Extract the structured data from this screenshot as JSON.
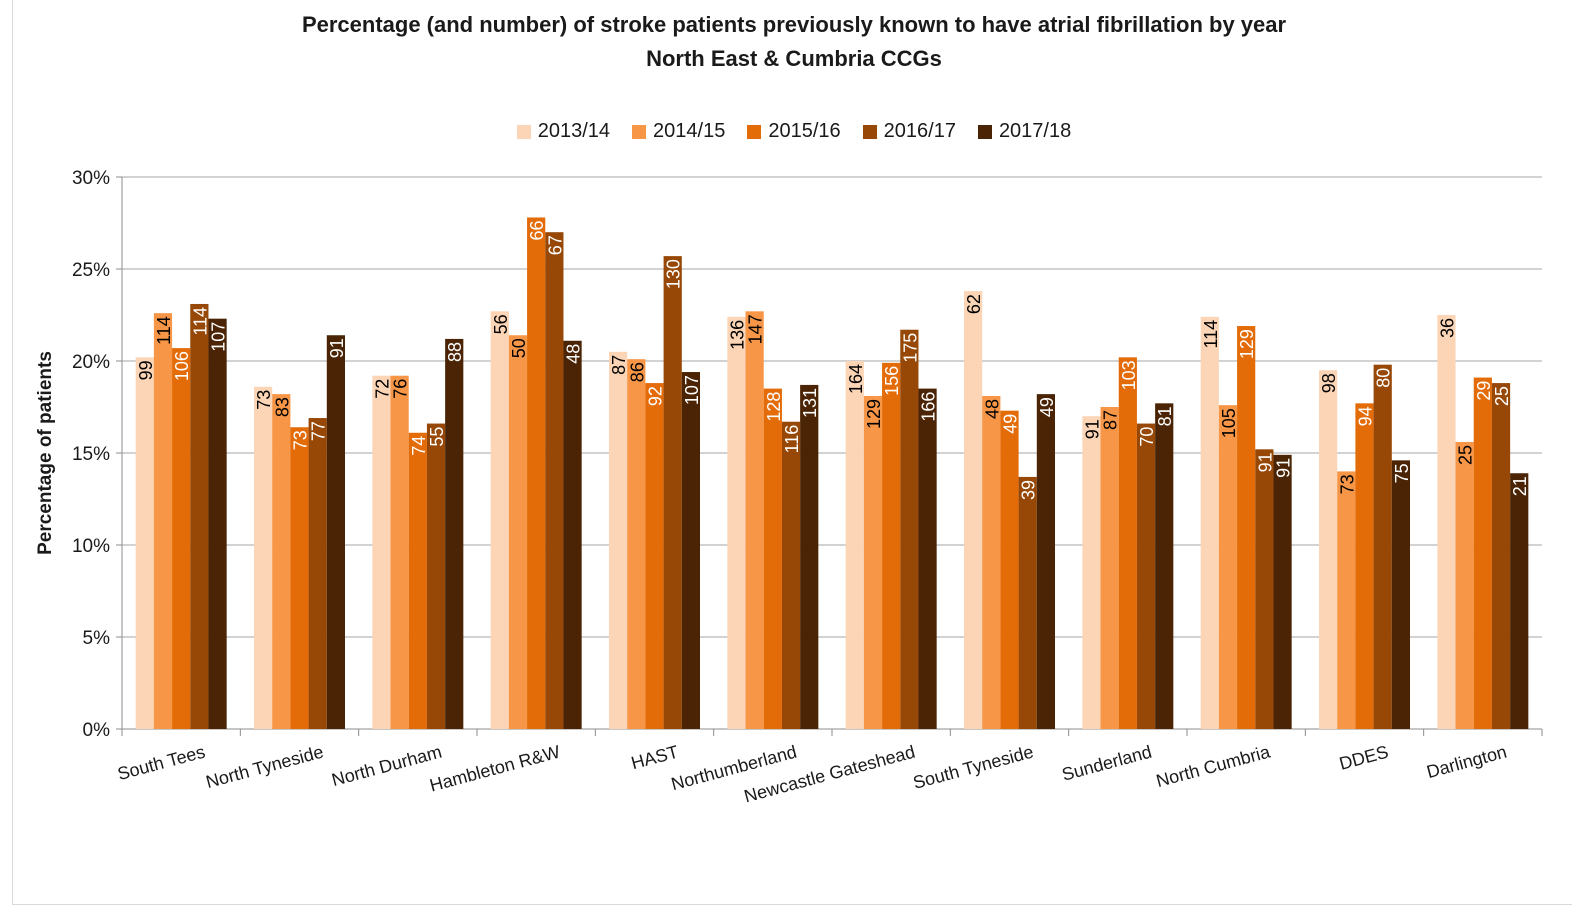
{
  "chart_data": {
    "type": "bar",
    "title": "Percentage (and number) of stroke patients previously known to have atrial fibrillation by year",
    "subtitle": "North East & Cumbria CCGs",
    "ylabel": "Percentage of patients",
    "xlabel": "",
    "ylim": [
      0,
      30
    ],
    "yticks": [
      "0%",
      "5%",
      "10%",
      "15%",
      "20%",
      "25%",
      "30%"
    ],
    "grid": true,
    "legend_position": "top",
    "categories": [
      "South Tees",
      "North Tyneside",
      "North Durham",
      "Hambleton R&W",
      "HAST",
      "Northumberland",
      "Newcastle Gateshead",
      "South Tyneside",
      "Sunderland",
      "North Cumbria",
      "DDES",
      "Darlington"
    ],
    "series": [
      {
        "name": "2013/14",
        "color": "#fbd5b5",
        "label_color": "#000000",
        "values": [
          20.2,
          18.6,
          19.2,
          22.7,
          20.5,
          22.4,
          20.0,
          23.8,
          17.0,
          22.4,
          19.5,
          22.5
        ],
        "labels": [
          "99",
          "73",
          "72",
          "56",
          "87",
          "136",
          "164",
          "62",
          "91",
          "114",
          "98",
          "36"
        ]
      },
      {
        "name": "2014/15",
        "color": "#f79646",
        "label_color": "#000000",
        "values": [
          22.6,
          18.2,
          19.2,
          21.4,
          20.1,
          22.7,
          18.1,
          18.1,
          17.5,
          17.6,
          14.0,
          15.6
        ],
        "labels": [
          "114",
          "83",
          "76",
          "50",
          "86",
          "147",
          "129",
          "48",
          "87",
          "105",
          "73",
          "25"
        ]
      },
      {
        "name": "2015/16",
        "color": "#e36c09",
        "label_color": "#ffffff",
        "values": [
          20.7,
          16.4,
          16.1,
          27.8,
          18.8,
          18.5,
          19.9,
          17.3,
          20.2,
          21.9,
          17.7,
          19.1
        ],
        "labels": [
          "106",
          "73",
          "74",
          "66",
          "92",
          "128",
          "156",
          "49",
          "103",
          "129",
          "94",
          "29"
        ]
      },
      {
        "name": "2016/17",
        "color": "#974806",
        "label_color": "#ffffff",
        "values": [
          23.1,
          16.9,
          16.6,
          27.0,
          25.7,
          16.7,
          21.7,
          13.7,
          16.6,
          15.2,
          19.8,
          18.8
        ],
        "labels": [
          "114",
          "77",
          "55",
          "67",
          "130",
          "116",
          "175",
          "39",
          "70",
          "91",
          "80",
          "25"
        ]
      },
      {
        "name": "2017/18",
        "color": "#4a2404",
        "label_color": "#ffffff",
        "values": [
          22.3,
          21.4,
          21.2,
          21.1,
          19.4,
          18.7,
          18.5,
          18.2,
          17.7,
          14.9,
          14.6,
          13.9
        ],
        "labels": [
          "107",
          "91",
          "88",
          "48",
          "107",
          "131",
          "166",
          "49",
          "81",
          "91",
          "75",
          "21"
        ]
      }
    ]
  }
}
